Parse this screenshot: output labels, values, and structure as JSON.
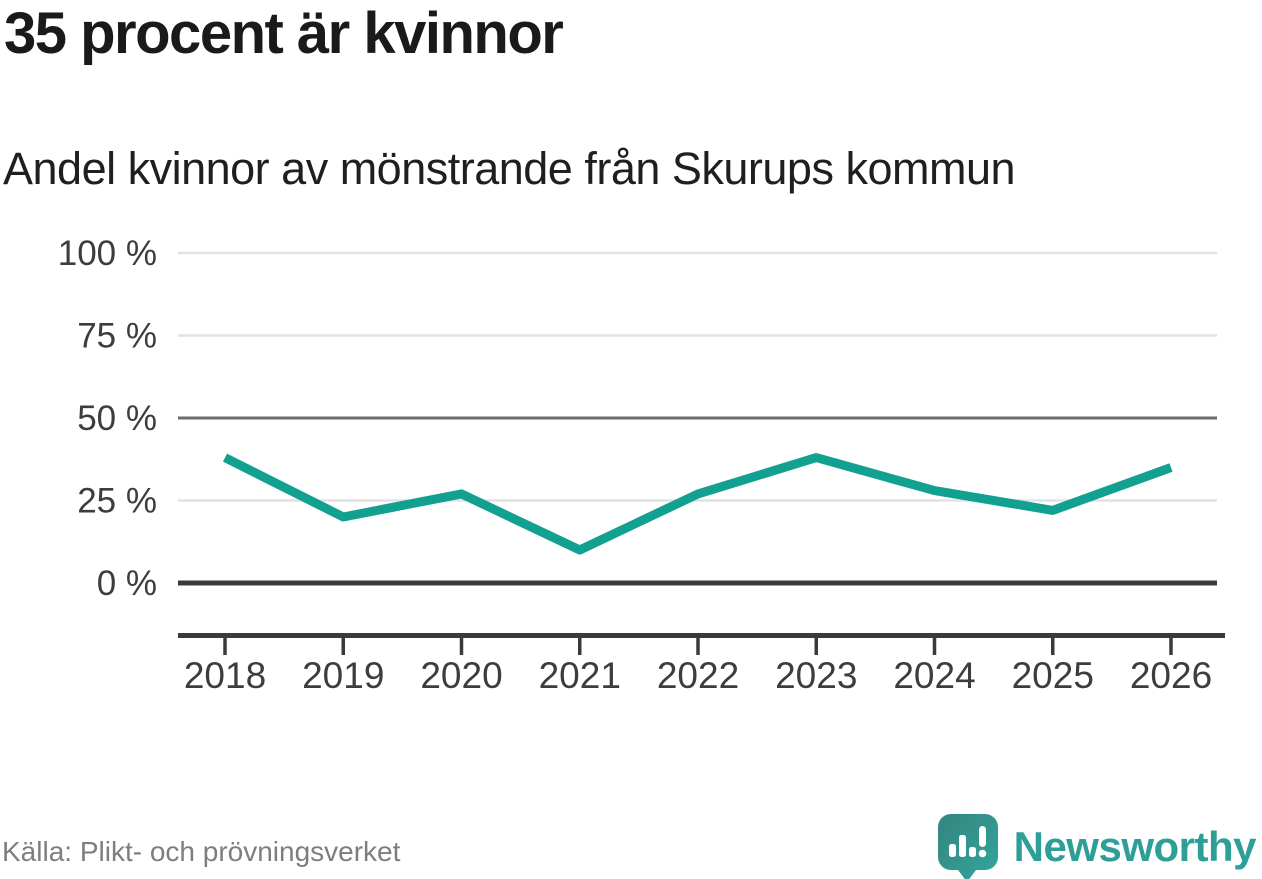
{
  "header": {
    "title": "35 procent är kvinnor",
    "subtitle": "Andel kvinnor av mönstrande från Skurups kommun"
  },
  "chart_data": {
    "type": "line",
    "categories": [
      2018,
      2019,
      2020,
      2021,
      2022,
      2023,
      2024,
      2025,
      2026
    ],
    "series": [
      {
        "name": "Andel kvinnor av mönstrande",
        "values": [
          38,
          20,
          27,
          10,
          27,
          38,
          28,
          22,
          35
        ]
      }
    ],
    "title": "35 procent är kvinnor",
    "subtitle": "Andel kvinnor av mönstrande från Skurups kommun",
    "xlabel": "",
    "ylabel": "",
    "unit": "%",
    "ylim": [
      0,
      100
    ],
    "grid": "horizontal",
    "legend_position": "none",
    "y_ticks": [
      {
        "label": "100 %",
        "value": 100,
        "style": "light"
      },
      {
        "label": "75 %",
        "value": 75,
        "style": "light"
      },
      {
        "label": "50 %",
        "value": 50,
        "style": "medium"
      },
      {
        "label": "25 %",
        "value": 25,
        "style": "light"
      },
      {
        "label": "0 %",
        "value": 0,
        "style": "dark"
      }
    ],
    "line_color": "#12a191"
  },
  "colors": {
    "line": "#12a191",
    "grid_light": "#e2e2e2",
    "grid_medium": "#6e6c75",
    "grid_dark": "#3a3a3a",
    "axis": "#3a3a3a",
    "tick_label": "#3d3d3d",
    "brand_teal": "#2d9f97"
  },
  "footer": {
    "source": "Källa: Plikt- och prövningsverket",
    "brand": "Newsworthy"
  },
  "icons": {
    "logo": "newsworthy-speech-bubble-chart-icon"
  }
}
